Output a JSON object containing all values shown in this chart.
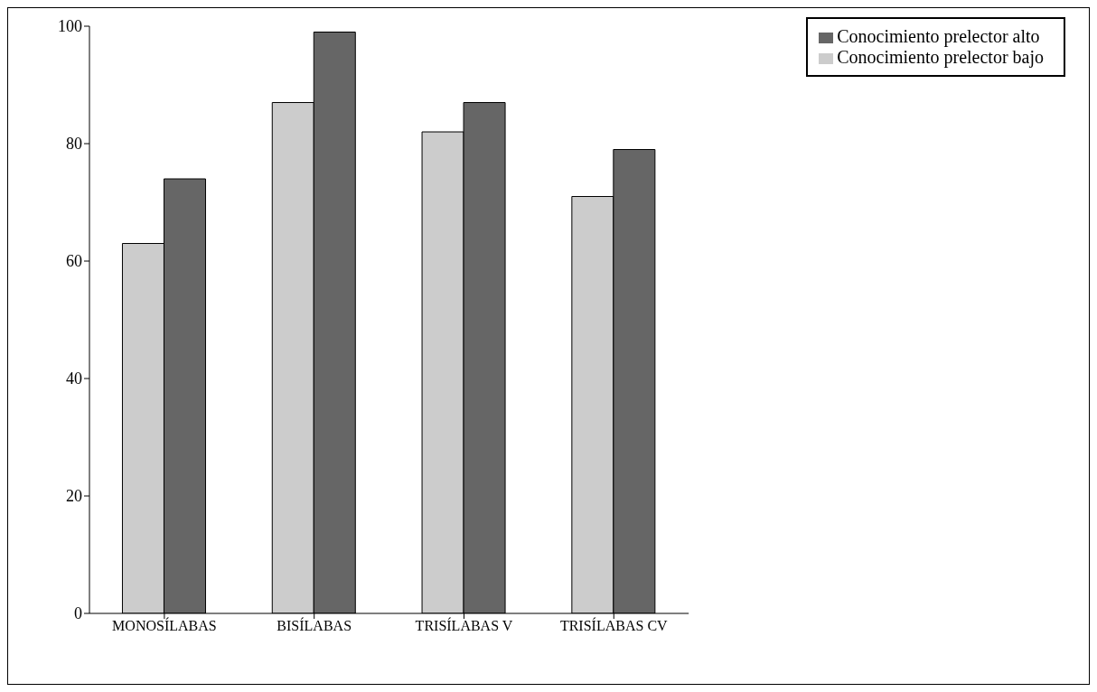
{
  "chart_data": {
    "type": "bar",
    "categories": [
      "MONOSÍLABAS",
      "BISÍLABAS",
      "TRISÍLABAS V",
      "TRISÍLABAS CV"
    ],
    "series": [
      {
        "name": "Conocimiento prelector bajo",
        "color": "#cccccc",
        "values": [
          63,
          87,
          82,
          71
        ]
      },
      {
        "name": "Conocimiento prelector alto",
        "color": "#666666",
        "values": [
          74,
          99,
          87,
          79
        ]
      }
    ],
    "ylim": [
      0,
      100
    ],
    "yticks": [
      0,
      20,
      40,
      60,
      80,
      100
    ],
    "grid": false,
    "legend": "top right"
  }
}
